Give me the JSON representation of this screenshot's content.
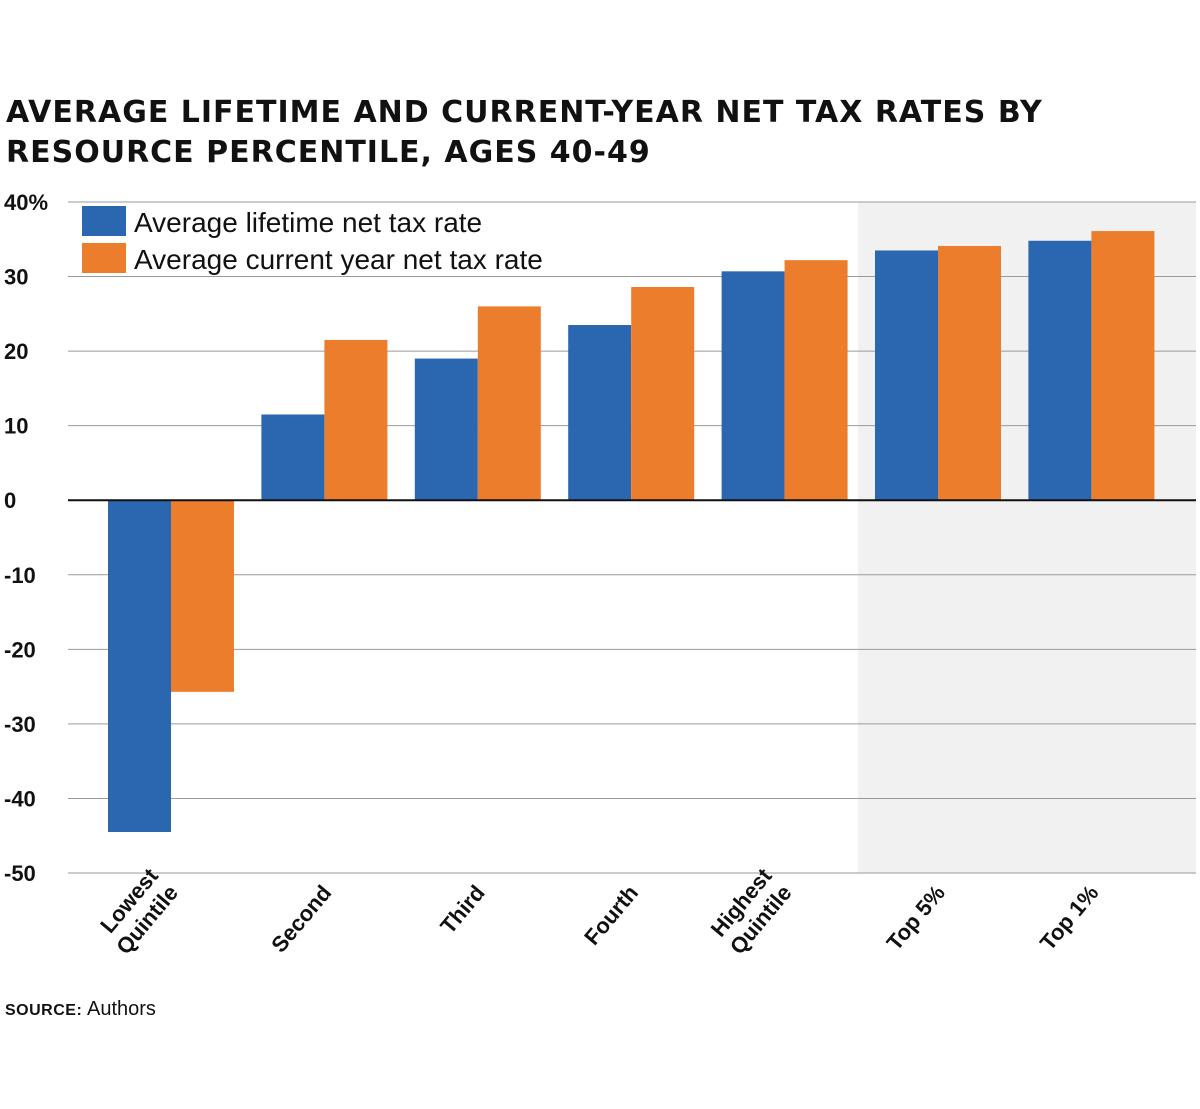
{
  "chart_data": {
    "type": "bar",
    "title_lines": [
      "AVERAGE LIFETIME AND CURRENT-YEAR NET TAX RATES BY",
      "RESOURCE PERCENTILE, AGES 40-49"
    ],
    "categories": [
      [
        "Lowest",
        "Quintile"
      ],
      [
        "Second"
      ],
      [
        "Third"
      ],
      [
        "Fourth"
      ],
      [
        "Highest",
        "Quintile"
      ],
      [
        "Top 5%"
      ],
      [
        "Top 1%"
      ]
    ],
    "series": [
      {
        "name": "Average lifetime net tax rate",
        "color": "#2b66b1",
        "values": [
          -44.5,
          11.5,
          19,
          23.5,
          30.7,
          33.5,
          34.8
        ]
      },
      {
        "name": "Average current year net tax rate",
        "color": "#ec7d2d",
        "values": [
          -25.7,
          21.5,
          26,
          28.6,
          32.2,
          34.1,
          36.1
        ]
      }
    ],
    "ylim": [
      -50,
      40
    ],
    "y_ticks": [
      -50,
      -40,
      -30,
      -20,
      -10,
      0,
      10,
      20,
      30,
      40
    ],
    "y_tick_labels": [
      "-50",
      "-40",
      "-30",
      "-20",
      "-10",
      "0",
      "10",
      "20",
      "30",
      "40%"
    ],
    "grid": true,
    "highlight_categories": [
      "Top 5%",
      "Top 1%"
    ],
    "highlight_color": "#f0f1f0",
    "legend_position": "top-left"
  },
  "source": {
    "label": "SOURCE:",
    "text": "Authors"
  }
}
